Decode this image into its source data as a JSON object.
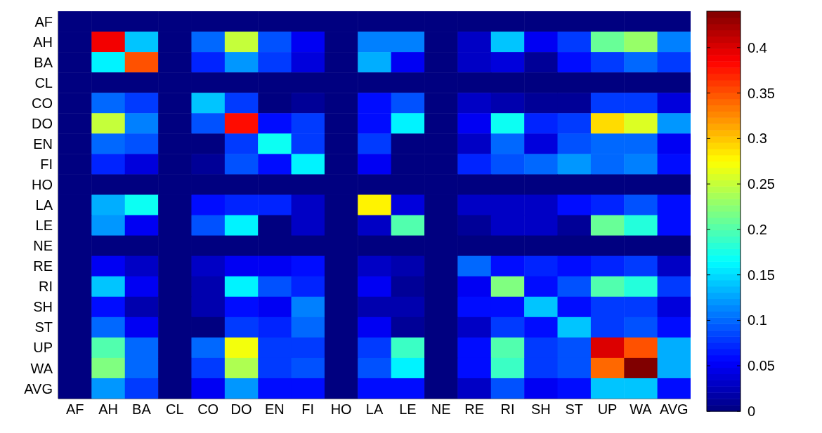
{
  "chart_data": {
    "type": "heatmap",
    "categories": [
      "AF",
      "AH",
      "BA",
      "CL",
      "CO",
      "DO",
      "EN",
      "FI",
      "HO",
      "LA",
      "LE",
      "NE",
      "RE",
      "RI",
      "SH",
      "ST",
      "UP",
      "WA",
      "AVG"
    ],
    "y_categories": [
      "AF",
      "AH",
      "BA",
      "CL",
      "CO",
      "DO",
      "EN",
      "FI",
      "HO",
      "LA",
      "LE",
      "NE",
      "RE",
      "RI",
      "SH",
      "ST",
      "UP",
      "WA",
      "AVG"
    ],
    "cells": [
      [
        0,
        0,
        0,
        0,
        0,
        0,
        0,
        0,
        0,
        0,
        0,
        0,
        0,
        0,
        0,
        0,
        0,
        0,
        0
      ],
      [
        0,
        0.39,
        0.14,
        0,
        0.1,
        0.25,
        0.09,
        0.05,
        0,
        0.11,
        0.11,
        0,
        0.03,
        0.14,
        0.05,
        0.08,
        0.21,
        0.23,
        0.11
      ],
      [
        0,
        0.16,
        0.35,
        0,
        0.07,
        0.12,
        0.08,
        0.04,
        0,
        0.13,
        0.05,
        0,
        0.03,
        0.04,
        0.01,
        0.06,
        0.08,
        0.1,
        0.08
      ],
      [
        0,
        0,
        0,
        0,
        0,
        0,
        0,
        0,
        0,
        0,
        0,
        0,
        0,
        0,
        0,
        0,
        0,
        0,
        0
      ],
      [
        0,
        0.1,
        0.08,
        0,
        0.14,
        0.08,
        0,
        0.01,
        0,
        0.06,
        0.09,
        0,
        0.03,
        0.02,
        0.01,
        0.01,
        0.08,
        0.08,
        0.04
      ],
      [
        0,
        0.25,
        0.11,
        0,
        0.09,
        0.38,
        0.06,
        0.08,
        0,
        0.06,
        0.16,
        0,
        0.05,
        0.17,
        0.07,
        0.08,
        0.29,
        0.26,
        0.12
      ],
      [
        0,
        0.1,
        0.09,
        0,
        0,
        0.08,
        0.17,
        0.08,
        0,
        0.08,
        0,
        0,
        0.03,
        0.1,
        0.04,
        0.09,
        0.1,
        0.1,
        0.05
      ],
      [
        0,
        0.07,
        0.04,
        0,
        0.01,
        0.09,
        0.06,
        0.16,
        0,
        0.05,
        0,
        0,
        0.07,
        0.09,
        0.1,
        0.12,
        0.1,
        0.11,
        0.06
      ],
      [
        0,
        0,
        0,
        0,
        0,
        0,
        0,
        0,
        0,
        0,
        0,
        0,
        0,
        0,
        0,
        0,
        0,
        0,
        0
      ],
      [
        0,
        0.13,
        0.17,
        0,
        0.06,
        0.07,
        0.07,
        0.03,
        0,
        0.28,
        0.04,
        0,
        0.03,
        0.03,
        0.03,
        0.06,
        0.07,
        0.09,
        0.06
      ],
      [
        0,
        0.12,
        0.05,
        0,
        0.09,
        0.16,
        0,
        0.03,
        0,
        0.03,
        0.2,
        0,
        0.01,
        0.03,
        0.03,
        0.01,
        0.21,
        0.18,
        0.06
      ],
      [
        0,
        0,
        0,
        0,
        0,
        0,
        0,
        0,
        0,
        0,
        0,
        0,
        0,
        0,
        0,
        0,
        0,
        0,
        0
      ],
      [
        0,
        0.05,
        0.03,
        0,
        0.03,
        0.05,
        0.05,
        0.06,
        0,
        0.03,
        0.02,
        0,
        0.1,
        0.06,
        0.07,
        0.06,
        0.07,
        0.08,
        0.03
      ],
      [
        0,
        0.14,
        0.05,
        0,
        0.02,
        0.16,
        0.09,
        0.07,
        0,
        0.05,
        0.01,
        0,
        0.05,
        0.22,
        0.06,
        0.09,
        0.2,
        0.18,
        0.08
      ],
      [
        0,
        0.06,
        0.02,
        0,
        0.02,
        0.06,
        0.05,
        0.11,
        0,
        0.02,
        0.02,
        0,
        0.06,
        0.06,
        0.14,
        0.06,
        0.08,
        0.08,
        0.04
      ],
      [
        0,
        0.1,
        0.05,
        0,
        0,
        0.08,
        0.07,
        0.1,
        0,
        0.05,
        0.01,
        0,
        0.03,
        0.08,
        0.06,
        0.14,
        0.08,
        0.09,
        0.06
      ],
      [
        0,
        0.2,
        0.1,
        0,
        0.1,
        0.27,
        0.08,
        0.08,
        0,
        0.08,
        0.19,
        0,
        0.06,
        0.2,
        0.08,
        0.09,
        0.4,
        0.35,
        0.13
      ],
      [
        0,
        0.22,
        0.1,
        0,
        0.08,
        0.24,
        0.08,
        0.09,
        0,
        0.09,
        0.16,
        0,
        0.06,
        0.19,
        0.08,
        0.09,
        0.34,
        0.44,
        0.13
      ],
      [
        0,
        0.12,
        0.08,
        0,
        0.05,
        0.12,
        0.06,
        0.06,
        0,
        0.06,
        0.06,
        0,
        0.03,
        0.09,
        0.05,
        0.06,
        0.14,
        0.14,
        0.06
      ]
    ],
    "clim": [
      0,
      0.44
    ],
    "cticks": [
      0,
      0.05,
      0.1,
      0.15,
      0.2,
      0.25,
      0.3,
      0.35,
      0.4
    ]
  }
}
